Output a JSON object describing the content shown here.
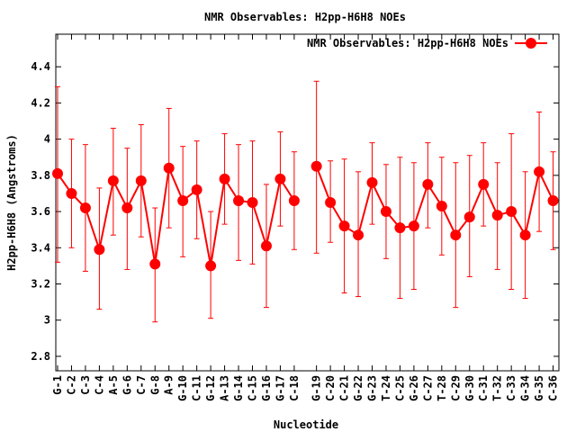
{
  "chart_data": {
    "type": "line",
    "title": "NMR Observables: H2pp-H6H8 NOEs",
    "xlabel": "Nucleotide",
    "ylabel": "H2pp-H6H8 (Angstroms)",
    "ylim": [
      2.72,
      4.58
    ],
    "yticks": [
      "2.8",
      "3",
      "3.2",
      "3.4",
      "3.6",
      "3.8",
      "4",
      "4.2",
      "4.4"
    ],
    "grid": false,
    "legend_position": "top-right",
    "color": "#ff0000",
    "categories": [
      "G-1",
      "C-2",
      "C-3",
      "C-4",
      "A-5",
      "G-6",
      "C-7",
      "G-8",
      "A-9",
      "G-10",
      "C-11",
      "G-12",
      "A-13",
      "G-14",
      "C-15",
      "G-16",
      "G-17",
      "C-18",
      "G-19",
      "C-20",
      "C-21",
      "G-22",
      "G-23",
      "T-24",
      "C-25",
      "G-26",
      "C-27",
      "T-28",
      "C-29",
      "G-30",
      "C-31",
      "T-32",
      "C-33",
      "G-34",
      "G-35",
      "C-36"
    ],
    "series": [
      {
        "name": "NMR Observables: H2pp-H6H8 NOEs",
        "segments": [
          [
            {
              "x": "G-1",
              "y": 3.81,
              "lo": 3.32,
              "hi": 4.29
            },
            {
              "x": "C-2",
              "y": 3.7,
              "lo": 3.4,
              "hi": 4.0
            },
            {
              "x": "C-3",
              "y": 3.62,
              "lo": 3.27,
              "hi": 3.97
            },
            {
              "x": "C-4",
              "y": 3.39,
              "lo": 3.06,
              "hi": 3.73
            },
            {
              "x": "A-5",
              "y": 3.77,
              "lo": 3.47,
              "hi": 4.06
            },
            {
              "x": "G-6",
              "y": 3.62,
              "lo": 3.28,
              "hi": 3.95
            },
            {
              "x": "C-7",
              "y": 3.77,
              "lo": 3.46,
              "hi": 4.08
            },
            {
              "x": "G-8",
              "y": 3.31,
              "lo": 2.99,
              "hi": 3.62
            },
            {
              "x": "A-9",
              "y": 3.84,
              "lo": 3.51,
              "hi": 4.17
            },
            {
              "x": "G-10",
              "y": 3.66,
              "lo": 3.35,
              "hi": 3.96
            },
            {
              "x": "C-11",
              "y": 3.72,
              "lo": 3.45,
              "hi": 3.99
            },
            {
              "x": "G-12",
              "y": 3.3,
              "lo": 3.01,
              "hi": 3.6
            },
            {
              "x": "A-13",
              "y": 3.78,
              "lo": 3.53,
              "hi": 4.03
            },
            {
              "x": "G-14",
              "y": 3.66,
              "lo": 3.33,
              "hi": 3.97
            },
            {
              "x": "C-15",
              "y": 3.65,
              "lo": 3.31,
              "hi": 3.99
            },
            {
              "x": "G-16",
              "y": 3.41,
              "lo": 3.07,
              "hi": 3.75
            },
            {
              "x": "G-17",
              "y": 3.78,
              "lo": 3.52,
              "hi": 4.04
            },
            {
              "x": "C-18",
              "y": 3.66,
              "lo": 3.39,
              "hi": 3.93
            }
          ],
          [
            {
              "x": "G-19",
              "y": 3.85,
              "lo": 3.37,
              "hi": 4.32
            },
            {
              "x": "C-20",
              "y": 3.65,
              "lo": 3.43,
              "hi": 3.88
            },
            {
              "x": "C-21",
              "y": 3.52,
              "lo": 3.15,
              "hi": 3.89
            },
            {
              "x": "G-22",
              "y": 3.47,
              "lo": 3.13,
              "hi": 3.82
            },
            {
              "x": "G-23",
              "y": 3.76,
              "lo": 3.53,
              "hi": 3.98
            },
            {
              "x": "T-24",
              "y": 3.6,
              "lo": 3.34,
              "hi": 3.86
            },
            {
              "x": "C-25",
              "y": 3.51,
              "lo": 3.12,
              "hi": 3.9
            },
            {
              "x": "G-26",
              "y": 3.52,
              "lo": 3.17,
              "hi": 3.87
            },
            {
              "x": "C-27",
              "y": 3.75,
              "lo": 3.51,
              "hi": 3.98
            },
            {
              "x": "T-28",
              "y": 3.63,
              "lo": 3.36,
              "hi": 3.9
            },
            {
              "x": "C-29",
              "y": 3.47,
              "lo": 3.07,
              "hi": 3.87
            },
            {
              "x": "G-30",
              "y": 3.57,
              "lo": 3.24,
              "hi": 3.91
            },
            {
              "x": "C-31",
              "y": 3.75,
              "lo": 3.52,
              "hi": 3.98
            },
            {
              "x": "T-32",
              "y": 3.58,
              "lo": 3.28,
              "hi": 3.87
            },
            {
              "x": "C-33",
              "y": 3.6,
              "lo": 3.17,
              "hi": 4.03
            },
            {
              "x": "G-34",
              "y": 3.47,
              "lo": 3.12,
              "hi": 3.82
            },
            {
              "x": "G-35",
              "y": 3.82,
              "lo": 3.49,
              "hi": 4.15
            },
            {
              "x": "C-36",
              "y": 3.66,
              "lo": 3.39,
              "hi": 3.93
            }
          ]
        ]
      }
    ]
  }
}
